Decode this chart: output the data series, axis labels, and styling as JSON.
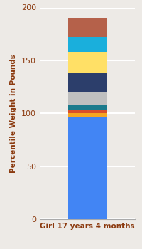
{
  "category": "Girl 17 years 4 months",
  "segments": [
    {
      "value": 97,
      "color": "#4285F4"
    },
    {
      "value": 3,
      "color": "#F5A623"
    },
    {
      "value": 3,
      "color": "#D94F2B"
    },
    {
      "value": 5,
      "color": "#1A7A8C"
    },
    {
      "value": 12,
      "color": "#BFBFBF"
    },
    {
      "value": 18,
      "color": "#2C3E6B"
    },
    {
      "value": 20,
      "color": "#FFE066"
    },
    {
      "value": 14,
      "color": "#1AAFDC"
    },
    {
      "value": 18,
      "color": "#B5614A"
    }
  ],
  "ylim": [
    0,
    200
  ],
  "yticks": [
    0,
    50,
    100,
    150,
    200
  ],
  "ylabel": "Percentile Weight in Pounds",
  "xlabel": "Girl 17 years 4 months",
  "background_color": "#EDEAE6",
  "grid_color": "#FFFFFF",
  "label_fontsize": 7.5,
  "tick_fontsize": 8,
  "xlabel_color": "#8B3A0F",
  "ylabel_color": "#8B3A0F"
}
